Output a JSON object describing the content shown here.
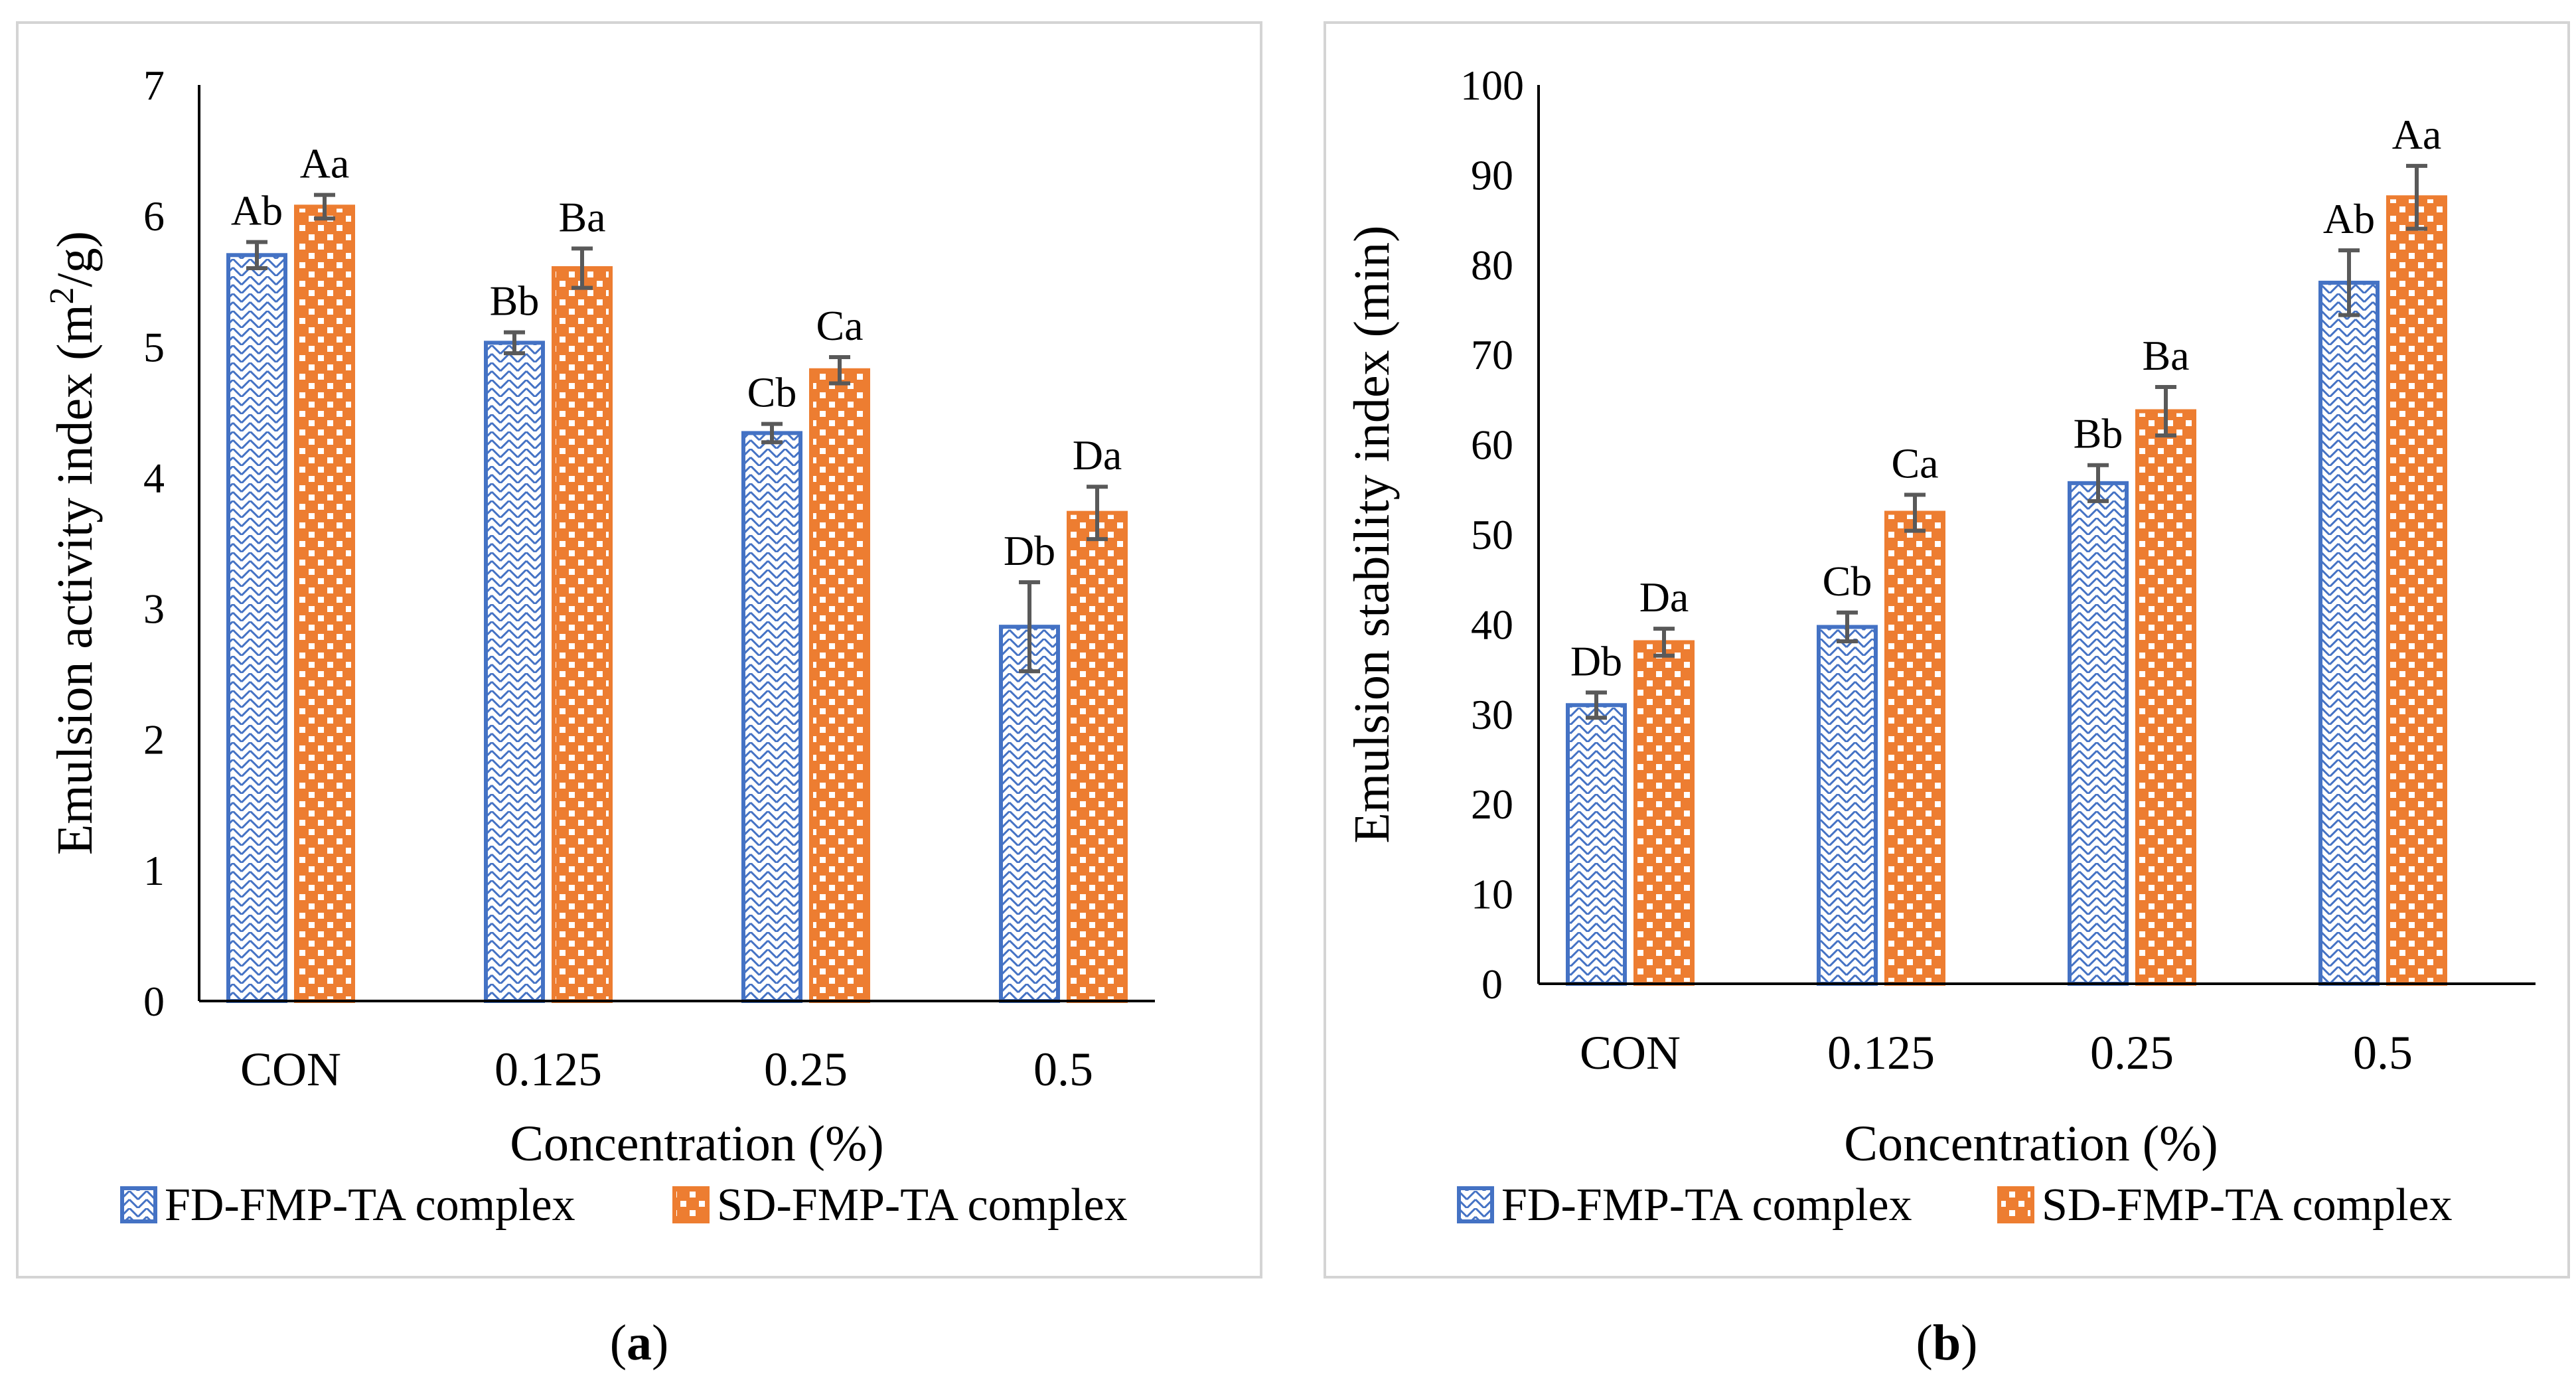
{
  "chart_data": [
    {
      "type": "bar",
      "panel_label": "a",
      "ylabel": "Emulsion activity index (m²/g)",
      "ylabel_main": "Emulsion activity index (m",
      "ylabel_sup": "2",
      "ylabel_tail": "/g)",
      "xlabel": "Concentration (%)",
      "categories": [
        "CON",
        "0.125",
        "0.25",
        "0.5"
      ],
      "ylim": [
        0,
        7
      ],
      "yticks": [
        0,
        1,
        2,
        3,
        4,
        5,
        6,
        7
      ],
      "series": [
        {
          "name": "FD-FMP-TA complex",
          "color": "#4472c4",
          "pattern": "diagonal-hatch",
          "values": [
            5.7,
            5.03,
            4.34,
            2.86
          ],
          "errors": [
            0.1,
            0.08,
            0.07,
            0.34
          ],
          "letters": [
            "Ab",
            "Bb",
            "Cb",
            "Db"
          ]
        },
        {
          "name": "SD-FMP-TA complex",
          "color": "#ed7d31",
          "pattern": "dots",
          "values": [
            6.07,
            5.6,
            4.82,
            3.73
          ],
          "errors": [
            0.09,
            0.15,
            0.1,
            0.2
          ],
          "letters": [
            "Aa",
            "Ba",
            "Ca",
            "Da"
          ]
        }
      ]
    },
    {
      "type": "bar",
      "panel_label": "b",
      "ylabel": "Emulsion stability index (min)",
      "xlabel": "Concentration (%)",
      "categories": [
        "CON",
        "0.125",
        "0.25",
        "0.5"
      ],
      "ylim": [
        0,
        100
      ],
      "yticks": [
        0,
        10,
        20,
        30,
        40,
        50,
        60,
        70,
        80,
        90,
        100
      ],
      "series": [
        {
          "name": "FD-FMP-TA complex",
          "color": "#4472c4",
          "pattern": "diagonal-hatch",
          "values": [
            31,
            39.7,
            55.7,
            78
          ],
          "errors": [
            1.4,
            1.6,
            2,
            3.6
          ],
          "letters": [
            "Db",
            "Cb",
            "Bb",
            "Ab"
          ]
        },
        {
          "name": "SD-FMP-TA complex",
          "color": "#ed7d31",
          "pattern": "dots",
          "values": [
            38,
            52.4,
            63.7,
            87.5
          ],
          "errors": [
            1.5,
            2,
            2.7,
            3.5
          ],
          "letters": [
            "Da",
            "Ca",
            "Ba",
            "Aa"
          ]
        }
      ]
    }
  ]
}
